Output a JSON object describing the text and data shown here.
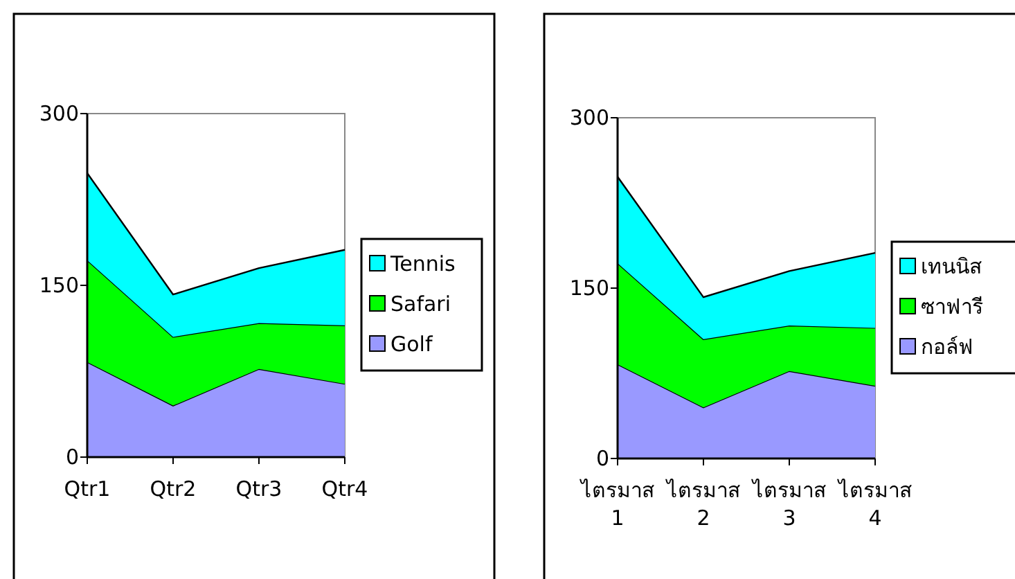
{
  "chart_data": [
    {
      "type": "area",
      "stacked": true,
      "categories": [
        "Qtr1",
        "Qtr2",
        "Qtr3",
        "Qtr4"
      ],
      "ylim": [
        0,
        300
      ],
      "yticks": [
        0,
        150,
        300
      ],
      "legend": "right",
      "series": [
        {
          "name": "Golf",
          "color": "#9999ff",
          "values": [
            83,
            45,
            77,
            64
          ]
        },
        {
          "name": "Safari",
          "color": "#00ff00",
          "values": [
            89,
            60,
            40,
            51
          ]
        },
        {
          "name": "Tennis",
          "color": "#00ffff",
          "values": [
            76,
            37,
            48,
            66
          ]
        }
      ]
    },
    {
      "type": "area",
      "stacked": true,
      "categories": [
        "ไตรมาส 1",
        "ไตรมาส 2",
        "ไตรมาส 3",
        "ไตรมาส 4"
      ],
      "ylim": [
        0,
        300
      ],
      "yticks": [
        0,
        150,
        300
      ],
      "legend": "right",
      "series": [
        {
          "name": "กอล์ฟ",
          "color": "#9999ff",
          "values": [
            83,
            45,
            77,
            64
          ]
        },
        {
          "name": "ซาฟารี",
          "color": "#00ff00",
          "values": [
            89,
            60,
            40,
            51
          ]
        },
        {
          "name": "เทนนิส",
          "color": "#00ffff",
          "values": [
            76,
            37,
            48,
            66
          ]
        }
      ]
    }
  ]
}
